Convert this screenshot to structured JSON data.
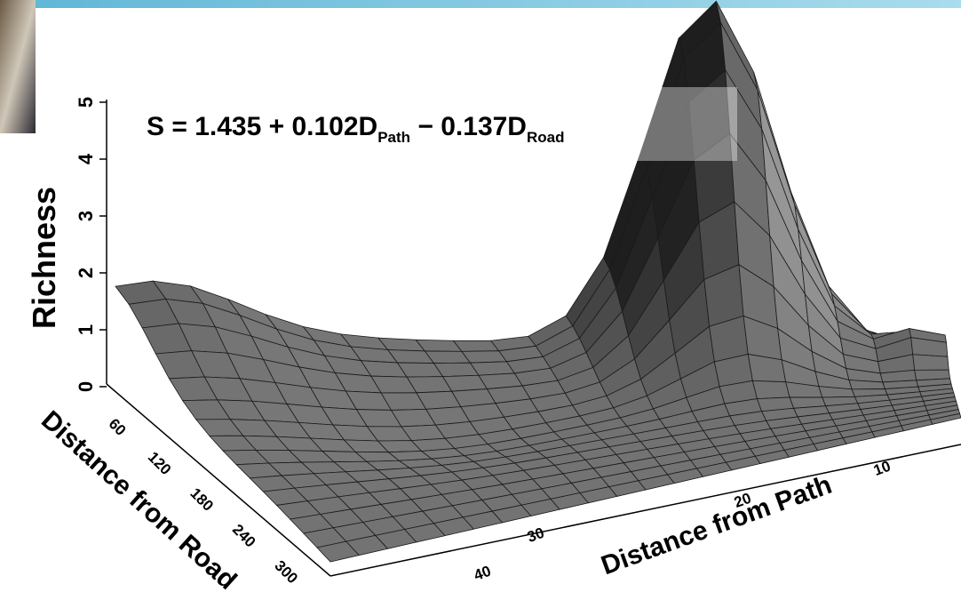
{
  "equation": {
    "lead": "S = 1.435 + 0.102D",
    "sub1": "Path",
    "mid": " − 0.137D",
    "sub2": "Road"
  },
  "z_axis": {
    "label": "Richness",
    "ticks": [
      0,
      1,
      2,
      3,
      4,
      5
    ]
  },
  "road_axis": {
    "label": "Distance from Road",
    "ticks": [
      60,
      120,
      180,
      240,
      300
    ]
  },
  "path_axis": {
    "label": "Distance from Path",
    "ticks": [
      40,
      30,
      20,
      10
    ]
  }
}
